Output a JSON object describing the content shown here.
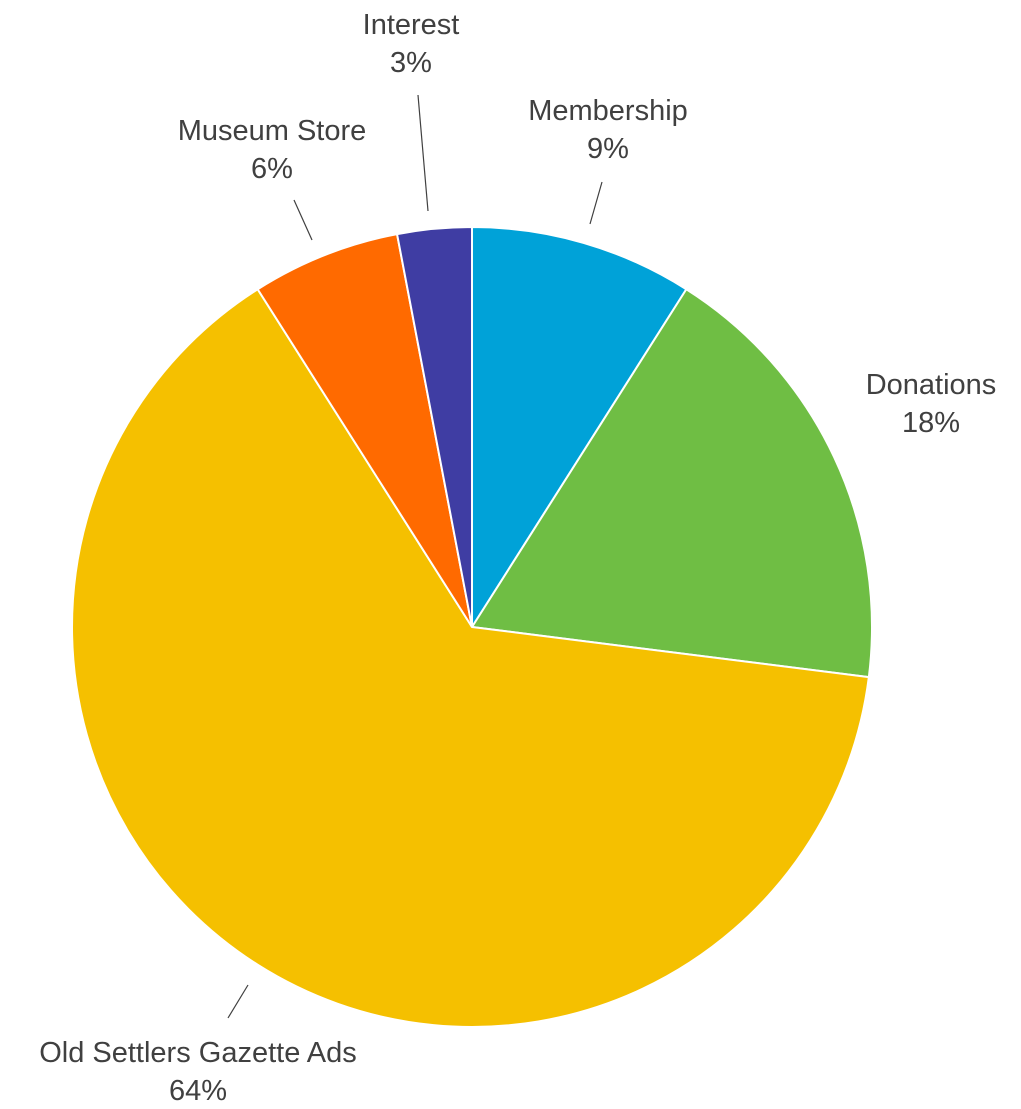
{
  "chart_data": {
    "type": "pie",
    "title": "",
    "slices": [
      {
        "label": "Membership",
        "value": 9,
        "value_label": "9%",
        "color": "#00A2D8"
      },
      {
        "label": "Donations",
        "value": 18,
        "value_label": "18%",
        "color": "#6FBE44"
      },
      {
        "label": "Old Settlers Gazette Ads",
        "value": 64,
        "value_label": "64%",
        "color": "#F5C000"
      },
      {
        "label": "Museum Store",
        "value": 6,
        "value_label": "6%",
        "color": "#FF6A00"
      },
      {
        "label": "Interest",
        "value": 3,
        "value_label": "3%",
        "color": "#3F3DA3"
      }
    ],
    "start_angle": "12 o'clock",
    "direction": "clockwise",
    "legend": "none",
    "labels": "outside with leader lines"
  }
}
